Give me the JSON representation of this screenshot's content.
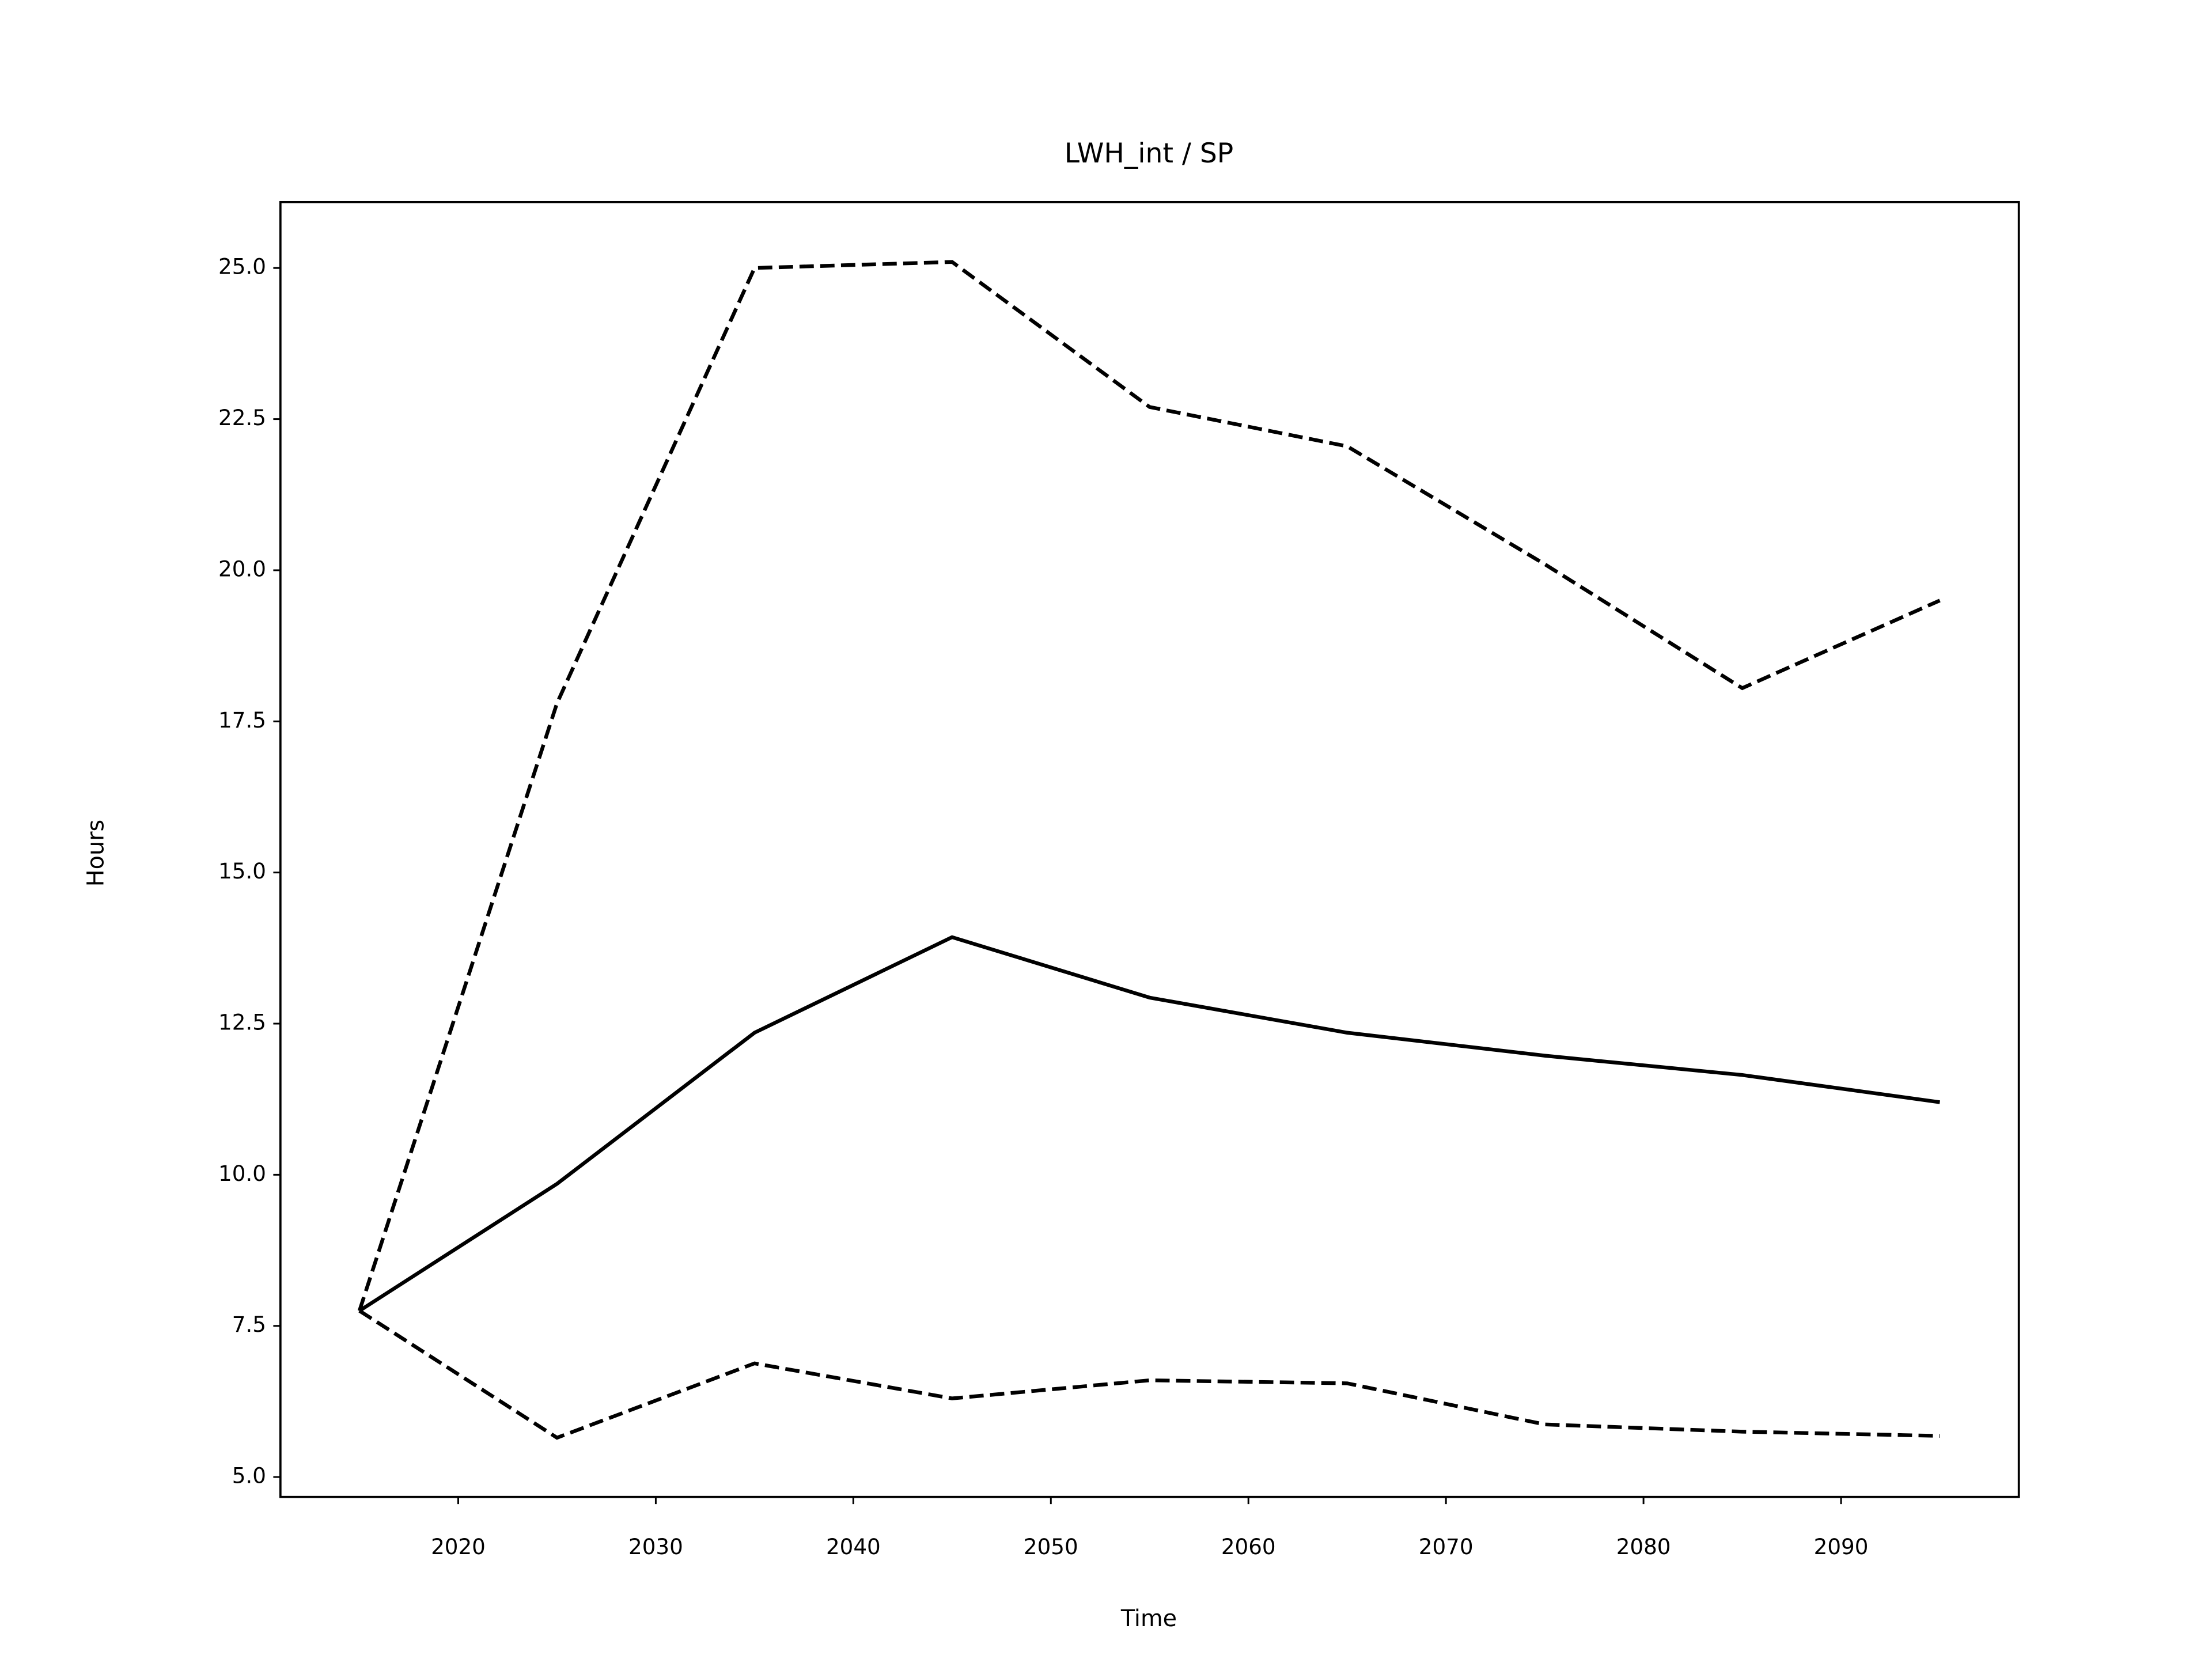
{
  "chart_data": {
    "type": "line",
    "title": "LWH_int / SP",
    "x_label": "Time",
    "y_label": "Hours",
    "x": [
      2015,
      2025,
      2035,
      2045,
      2055,
      2065,
      2075,
      2085,
      2095
    ],
    "series": [
      {
        "color": "#000000",
        "linestyle": "solid",
        "values": [
          7.75,
          9.85,
          12.35,
          13.93,
          12.93,
          12.35,
          11.97,
          11.65,
          11.2
        ]
      },
      {
        "color": "#000000",
        "linestyle": "dashed",
        "values": [
          7.75,
          17.8,
          25.0,
          25.1,
          22.7,
          22.05,
          20.1,
          18.05,
          19.5
        ]
      },
      {
        "color": "#000000",
        "linestyle": "dashed",
        "values": [
          7.75,
          5.65,
          6.88,
          6.3,
          6.6,
          6.55,
          5.87,
          5.75,
          5.68
        ]
      }
    ],
    "xlim": [
      2011,
      2099
    ],
    "ylim": [
      4.67,
      26.09
    ],
    "xticks": [
      2020,
      2030,
      2040,
      2050,
      2060,
      2070,
      2080,
      2090
    ],
    "yticks": [
      {
        "value": 5,
        "label": "5.0"
      },
      {
        "value": 7.5,
        "label": "7.5"
      },
      {
        "value": 10,
        "label": "10.0"
      },
      {
        "value": 12.5,
        "label": "12.5"
      },
      {
        "value": 15,
        "label": "15.0"
      },
      {
        "value": 17.5,
        "label": "17.5"
      },
      {
        "value": 20,
        "label": "20.0"
      },
      {
        "value": 22.5,
        "label": "22.5"
      },
      {
        "value": 25,
        "label": "25.0"
      }
    ],
    "grid": false
  }
}
